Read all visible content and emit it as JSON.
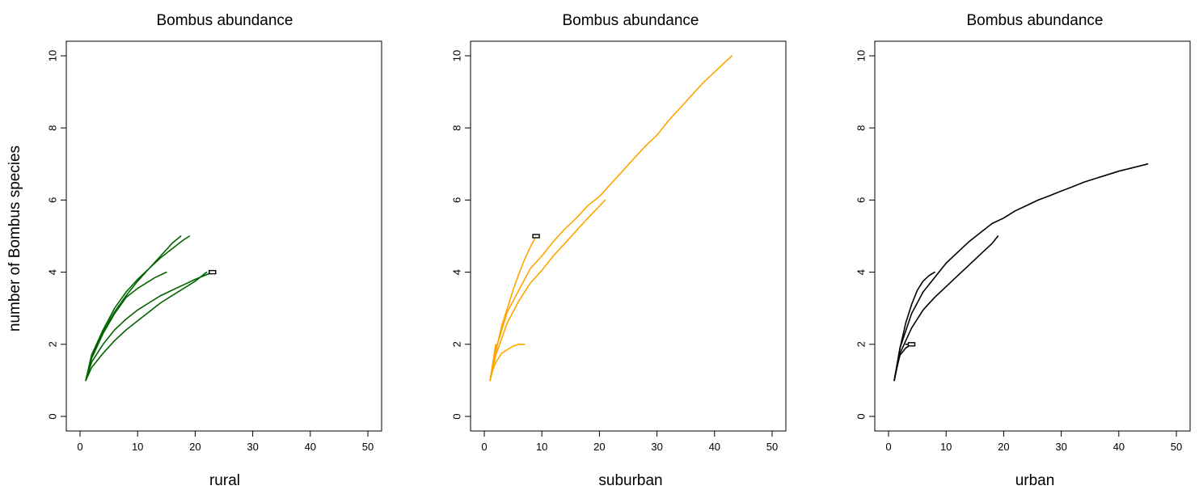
{
  "figure": {
    "ylabel": "number of Bombus species"
  },
  "chart_data": [
    {
      "type": "line",
      "title": "Bombus abundance",
      "xlabel": "rural",
      "ylabel": "number of Bombus species",
      "xlim": [
        0,
        50
      ],
      "ylim": [
        0,
        10
      ],
      "xticks": [
        0,
        10,
        20,
        30,
        40,
        50
      ],
      "yticks": [
        0,
        2,
        4,
        6,
        8,
        10
      ],
      "color": "#006400",
      "series": [
        {
          "x": [
            1,
            2,
            4,
            6,
            8,
            10,
            12,
            14,
            16,
            18,
            19
          ],
          "y": [
            1,
            1.7,
            2.4,
            3.0,
            3.45,
            3.8,
            4.1,
            4.4,
            4.65,
            4.9,
            5.0
          ]
        },
        {
          "x": [
            1,
            2,
            4,
            6,
            8,
            10,
            12,
            14,
            16,
            17.5
          ],
          "y": [
            1,
            1.65,
            2.35,
            2.9,
            3.35,
            3.75,
            4.1,
            4.45,
            4.8,
            5.0
          ]
        },
        {
          "x": [
            1,
            2,
            4,
            6,
            8,
            10,
            12,
            13,
            15
          ],
          "y": [
            1,
            1.6,
            2.3,
            2.85,
            3.3,
            3.55,
            3.75,
            3.85,
            4.0
          ]
        },
        {
          "x": [
            1,
            2,
            4,
            6,
            8,
            10,
            12,
            14,
            16,
            18,
            20,
            23
          ],
          "y": [
            1,
            1.5,
            2.0,
            2.4,
            2.7,
            2.95,
            3.15,
            3.35,
            3.5,
            3.65,
            3.8,
            4.0
          ]
        },
        {
          "x": [
            1,
            2,
            4,
            6,
            8,
            10,
            12,
            14,
            16,
            18,
            20,
            22
          ],
          "y": [
            1,
            1.35,
            1.75,
            2.1,
            2.4,
            2.65,
            2.9,
            3.15,
            3.35,
            3.55,
            3.75,
            4.0
          ]
        }
      ],
      "endpoints": [
        {
          "x": 23,
          "y": 4
        }
      ]
    },
    {
      "type": "line",
      "title": "Bombus abundance",
      "xlabel": "suburban",
      "xlim": [
        0,
        50
      ],
      "ylim": [
        0,
        10
      ],
      "xticks": [
        0,
        10,
        20,
        30,
        40,
        50
      ],
      "yticks": [
        0,
        2,
        4,
        6,
        8,
        10
      ],
      "color": "#FFA500",
      "series": [
        {
          "x": [
            1,
            2,
            3,
            4,
            5,
            6,
            7,
            8,
            9
          ],
          "y": [
            1,
            1.8,
            2.5,
            3.0,
            3.5,
            3.95,
            4.35,
            4.7,
            5.0
          ]
        },
        {
          "x": [
            1,
            2,
            4,
            6,
            8,
            10,
            12,
            14,
            16,
            18,
            20,
            22,
            24,
            26,
            28,
            30,
            32,
            34,
            36,
            38,
            40,
            43
          ],
          "y": [
            1,
            1.85,
            2.9,
            3.5,
            4.1,
            4.45,
            4.85,
            5.2,
            5.5,
            5.85,
            6.1,
            6.45,
            6.8,
            7.15,
            7.5,
            7.8,
            8.2,
            8.55,
            8.9,
            9.25,
            9.55,
            10.0
          ]
        },
        {
          "x": [
            1,
            2,
            4,
            6,
            8,
            10,
            12,
            14,
            16,
            18,
            21
          ],
          "y": [
            1,
            1.7,
            2.6,
            3.2,
            3.7,
            4.05,
            4.45,
            4.8,
            5.15,
            5.5,
            6.0
          ]
        },
        {
          "x": [
            1,
            1.5,
            2,
            3,
            4,
            5,
            6,
            7
          ],
          "y": [
            1,
            1.3,
            1.5,
            1.75,
            1.85,
            1.95,
            2.0,
            2.0
          ]
        },
        {
          "x": [
            1,
            1.5,
            2
          ],
          "y": [
            1,
            1.5,
            2.0
          ]
        }
      ],
      "endpoints": [
        {
          "x": 9,
          "y": 5
        }
      ]
    },
    {
      "type": "line",
      "title": "Bombus abundance",
      "xlabel": "urban",
      "xlim": [
        0,
        50
      ],
      "ylim": [
        0,
        10
      ],
      "xticks": [
        0,
        10,
        20,
        30,
        40,
        50
      ],
      "yticks": [
        0,
        2,
        4,
        6,
        8,
        10
      ],
      "color": "#000000",
      "series": [
        {
          "x": [
            1,
            2,
            4,
            6,
            8,
            10,
            12,
            14,
            16,
            18,
            20,
            22,
            24,
            26,
            28,
            30,
            32,
            34,
            36,
            38,
            40,
            42,
            45
          ],
          "y": [
            1,
            1.9,
            2.85,
            3.45,
            3.85,
            4.25,
            4.55,
            4.85,
            5.1,
            5.35,
            5.5,
            5.7,
            5.85,
            6.0,
            6.12,
            6.25,
            6.37,
            6.5,
            6.6,
            6.7,
            6.8,
            6.88,
            7.0
          ]
        },
        {
          "x": [
            1,
            2,
            4,
            6,
            8,
            10,
            12,
            14,
            16,
            18,
            19
          ],
          "y": [
            1,
            1.75,
            2.45,
            2.95,
            3.3,
            3.6,
            3.9,
            4.2,
            4.5,
            4.8,
            5.0
          ]
        },
        {
          "x": [
            1,
            2,
            3,
            4,
            5,
            6,
            7,
            8
          ],
          "y": [
            1,
            1.9,
            2.6,
            3.1,
            3.5,
            3.75,
            3.9,
            4.0
          ]
        },
        {
          "x": [
            1,
            1.5,
            2,
            3,
            4
          ],
          "y": [
            1,
            1.4,
            1.7,
            1.9,
            2.0
          ]
        },
        {
          "x": [
            3,
            4.5
          ],
          "y": [
            2.0,
            2.0
          ]
        }
      ],
      "endpoints": [
        {
          "x": 4,
          "y": 2
        }
      ]
    }
  ]
}
